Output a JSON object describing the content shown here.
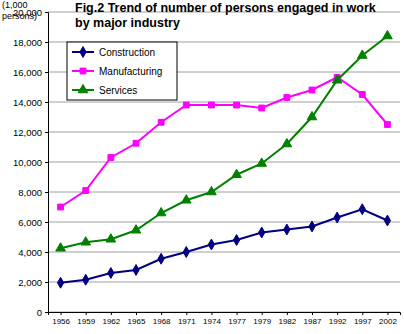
{
  "chart_data": {
    "type": "line",
    "title": "Fig.2  Trend of number of persons engaged in work\nby major industry",
    "y_label": "(1,000\npersons)",
    "categories": [
      "1956",
      "1959",
      "1962",
      "1965",
      "1968",
      "1971",
      "1974",
      "1977",
      "1979",
      "1982",
      "1987",
      "1992",
      "1997",
      "2002"
    ],
    "series": [
      {
        "name": "Construction",
        "color": "#000080",
        "marker": "diamond",
        "line_style": "solid",
        "values": [
          1950,
          2150,
          2600,
          2800,
          3550,
          4000,
          4500,
          4800,
          5300,
          5500,
          5700,
          6300,
          6850,
          6100
        ]
      },
      {
        "name": "Manufacturing",
        "color": "#ff00ff",
        "marker": "square",
        "line_style": "solid",
        "values": [
          7000,
          8100,
          10300,
          11250,
          12650,
          13800,
          13800,
          13800,
          13600,
          14300,
          14800,
          15650,
          14500,
          12500
        ]
      },
      {
        "name": "Services",
        "color": "#008000",
        "marker": "triangle",
        "line_style": "solid",
        "values": [
          4250,
          4650,
          4850,
          5450,
          6600,
          7450,
          8000,
          9150,
          9900,
          11200,
          13000,
          15450,
          17100,
          18400
        ]
      }
    ],
    "ylim": [
      0,
      20000
    ],
    "yticks": [
      0,
      {
        "value": 2000,
        "label": "2,000"
      },
      {
        "value": 4000,
        "label": "4,000"
      },
      {
        "value": 6000,
        "label": "6,000"
      },
      {
        "value": 8000,
        "label": "8,000"
      },
      {
        "value": 10000,
        "label": "10,000"
      },
      {
        "value": 12000,
        "label": "12,000"
      },
      {
        "value": 14000,
        "label": "14,000"
      },
      {
        "value": 16000,
        "label": "16,000"
      },
      {
        "value": 18000,
        "label": "18,000"
      },
      {
        "value": 20000,
        "label": "20,000"
      }
    ],
    "grid": true,
    "legend": "upper left"
  }
}
